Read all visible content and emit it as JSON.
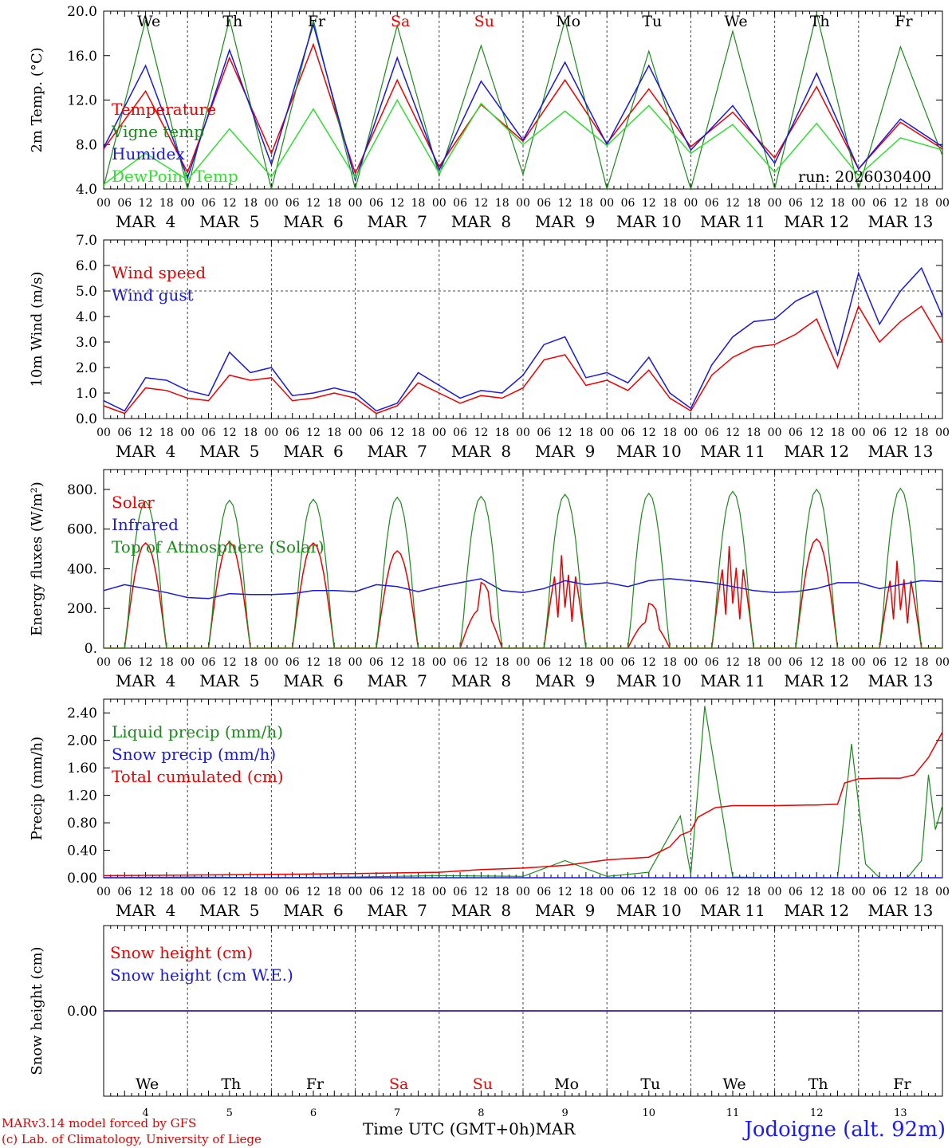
{
  "footer": {
    "model_line": "MARv3.14 model forced by GFS",
    "copyright_line": "(c) Lab. of Climatology, University of Liege",
    "xaxis_title": "Time UTC (GMT+0h)",
    "month": "MAR",
    "site": "Jodoigne (alt. 92m)"
  },
  "colors": {
    "red": "#ee0000",
    "green": "#1a8a1a",
    "blue": "#1818e0",
    "lightgreen": "#33dd33",
    "weekend": "#ee0000"
  },
  "days": {
    "weekday_names": [
      "We",
      "Th",
      "Fr",
      "Sa",
      "Su",
      "Mo",
      "Tu",
      "We",
      "Th",
      "Fr"
    ],
    "weekend_flags": [
      false,
      false,
      false,
      true,
      true,
      false,
      false,
      false,
      false,
      false
    ],
    "day_numbers": [
      "4",
      "5",
      "6",
      "7",
      "8",
      "9",
      "10",
      "11",
      "12",
      "13"
    ],
    "month_labels": [
      "MAR  4",
      "MAR  5",
      "MAR  6",
      "MAR  7",
      "MAR  8",
      "MAR  9",
      "MAR 10",
      "MAR 11",
      "MAR 12",
      "MAR 13"
    ],
    "hour_ticks": [
      "00",
      "06",
      "12",
      "18"
    ],
    "final_hour_tick": "00"
  },
  "chart_data": [
    {
      "type": "line",
      "name": "temperature",
      "ylabel": "2m Temp. (°C)",
      "ylim": [
        4,
        20
      ],
      "yticks": [
        "4.0",
        "8.0",
        "12.0",
        "16.0",
        "20.0"
      ],
      "annotation": "run: 2026030400",
      "x_hours": [
        0,
        12,
        24,
        36,
        48,
        60,
        72,
        84,
        96,
        108,
        120,
        132,
        144,
        156,
        168,
        180,
        192,
        204,
        216,
        228,
        240
      ],
      "series": [
        {
          "name": "Temperature",
          "color": "red",
          "values": [
            7.6,
            12.8,
            5.5,
            15.8,
            7.2,
            17.0,
            5.4,
            13.8,
            6.0,
            11.6,
            8.3,
            13.8,
            8.1,
            13.0,
            7.8,
            10.9,
            6.8,
            13.2,
            5.8,
            10.0,
            7.6
          ]
        },
        {
          "name": "Vigne temp",
          "color": "green",
          "values": [
            4.2,
            19.2,
            4.0,
            19.3,
            3.8,
            19.2,
            3.9,
            18.7,
            5.2,
            16.9,
            5.3,
            19.2,
            4.0,
            16.4,
            3.5,
            18.2,
            3.4,
            19.8,
            3.6,
            16.8,
            7.0
          ]
        },
        {
          "name": "Humidex",
          "color": "blue",
          "values": [
            7.7,
            15.1,
            5.0,
            16.5,
            6.2,
            18.8,
            4.8,
            15.8,
            5.7,
            13.7,
            8.4,
            15.4,
            8.0,
            15.1,
            7.5,
            11.5,
            6.3,
            14.4,
            5.8,
            10.3,
            7.8
          ]
        },
        {
          "name": "DewPoint Temp",
          "color": "lightgreen",
          "values": [
            4.4,
            7.2,
            4.8,
            9.4,
            5.1,
            11.2,
            5.0,
            12.0,
            5.4,
            11.7,
            8.0,
            11.0,
            7.9,
            11.5,
            7.2,
            9.8,
            5.5,
            9.9,
            5.2,
            8.6,
            7.5
          ]
        }
      ]
    },
    {
      "type": "line",
      "name": "wind",
      "ylabel": "10m Wind (m/s)",
      "ylim": [
        0,
        7
      ],
      "yticks": [
        "0.0",
        "1.0",
        "2.0",
        "3.0",
        "4.0",
        "5.0",
        "6.0",
        "7.0"
      ],
      "ref_line": 5.0,
      "x_hours": [
        0,
        6,
        12,
        18,
        24,
        30,
        36,
        42,
        48,
        54,
        60,
        66,
        72,
        78,
        84,
        90,
        96,
        102,
        108,
        114,
        120,
        126,
        132,
        138,
        144,
        150,
        156,
        162,
        168,
        174,
        180,
        186,
        192,
        198,
        204,
        210,
        216,
        222,
        228,
        234,
        240
      ],
      "series": [
        {
          "name": "Wind speed",
          "color": "red",
          "values": [
            0.5,
            0.2,
            1.2,
            1.1,
            0.8,
            0.7,
            1.7,
            1.5,
            1.6,
            0.7,
            0.8,
            1.0,
            0.8,
            0.2,
            0.5,
            1.4,
            1.0,
            0.6,
            0.9,
            0.8,
            1.2,
            2.3,
            2.5,
            1.3,
            1.5,
            1.1,
            1.9,
            0.8,
            0.3,
            1.7,
            2.4,
            2.8,
            2.9,
            3.3,
            3.9,
            2.0,
            4.4,
            3.0,
            3.8,
            4.4,
            3.0
          ]
        },
        {
          "name": "Wind gust",
          "color": "blue",
          "values": [
            0.7,
            0.3,
            1.6,
            1.5,
            1.1,
            0.9,
            2.6,
            1.8,
            2.0,
            0.9,
            1.0,
            1.2,
            1.0,
            0.3,
            0.6,
            1.8,
            1.3,
            0.8,
            1.1,
            1.0,
            1.7,
            2.9,
            3.2,
            1.6,
            1.8,
            1.4,
            2.4,
            1.0,
            0.4,
            2.1,
            3.2,
            3.8,
            3.9,
            4.6,
            5.0,
            2.5,
            5.7,
            3.7,
            5.0,
            5.9,
            4.0
          ]
        }
      ]
    },
    {
      "type": "line",
      "name": "energy",
      "ylabel": "Energy fluxes (W/m²)",
      "ylim": [
        0,
        900
      ],
      "yticks": [
        "0.",
        "200.",
        "400.",
        "600.",
        "800."
      ],
      "series": [
        {
          "name": "Solar",
          "color": "red",
          "daily_peaks": [
            530,
            535,
            530,
            490,
            360,
            510,
            245,
            560,
            550,
            480
          ],
          "daily_shape": [
            "clear",
            "clear",
            "clear",
            "clear",
            "cloudy",
            "spiky",
            "cloudy",
            "spiky",
            "clear",
            "spiky"
          ]
        },
        {
          "name": "Infrared",
          "color": "blue",
          "x_hours": [
            0,
            6,
            12,
            18,
            24,
            30,
            36,
            42,
            48,
            54,
            60,
            66,
            72,
            78,
            84,
            90,
            96,
            102,
            108,
            114,
            120,
            126,
            132,
            138,
            144,
            150,
            156,
            162,
            168,
            174,
            180,
            186,
            192,
            198,
            204,
            210,
            216,
            222,
            228,
            234,
            240
          ],
          "values": [
            290,
            320,
            300,
            280,
            255,
            250,
            275,
            270,
            270,
            275,
            290,
            290,
            285,
            320,
            310,
            285,
            310,
            330,
            350,
            290,
            280,
            300,
            340,
            320,
            330,
            310,
            340,
            350,
            340,
            330,
            310,
            290,
            280,
            285,
            300,
            330,
            330,
            300,
            320,
            340,
            335
          ]
        },
        {
          "name": "Top of Atmosphere (Solar)",
          "color": "green",
          "daily_peaks": [
            740,
            745,
            750,
            760,
            765,
            775,
            780,
            790,
            800,
            805
          ]
        }
      ]
    },
    {
      "type": "line",
      "name": "precip",
      "ylabel": "Precip (mm/h)",
      "ylim": [
        0,
        2.6
      ],
      "yticks": [
        "0.00",
        "0.40",
        "0.80",
        "1.20",
        "1.60",
        "2.00",
        "2.40"
      ],
      "series": [
        {
          "name": "Liquid precip (mm/h)",
          "color": "green",
          "x_hours": [
            0,
            24,
            48,
            72,
            96,
            120,
            132,
            144,
            156,
            165,
            168,
            172,
            180,
            192,
            210,
            214,
            218,
            222,
            230,
            234,
            236,
            238,
            240
          ],
          "values": [
            0.0,
            0.01,
            0.0,
            0.01,
            0.03,
            0.02,
            0.25,
            0.02,
            0.08,
            0.9,
            0.05,
            2.5,
            0.01,
            0.0,
            0.0,
            1.95,
            0.2,
            0.0,
            0.0,
            0.25,
            1.5,
            0.7,
            1.05
          ]
        },
        {
          "name": "Snow precip (mm/h)",
          "color": "blue",
          "x_hours": [
            0,
            240
          ],
          "values": [
            0.0,
            0.0
          ]
        },
        {
          "name": "Total cumulated (cm)",
          "color": "red",
          "x_hours": [
            0,
            24,
            48,
            72,
            96,
            108,
            120,
            132,
            144,
            156,
            162,
            165,
            168,
            170,
            175,
            180,
            192,
            204,
            210,
            212,
            216,
            222,
            228,
            232,
            236,
            240
          ],
          "values": [
            0.03,
            0.04,
            0.05,
            0.06,
            0.08,
            0.12,
            0.14,
            0.18,
            0.26,
            0.3,
            0.45,
            0.62,
            0.68,
            0.88,
            1.02,
            1.05,
            1.05,
            1.06,
            1.07,
            1.38,
            1.44,
            1.45,
            1.45,
            1.5,
            1.75,
            2.12
          ]
        }
      ]
    },
    {
      "type": "line",
      "name": "snow",
      "ylabel": "Snow height (cm)",
      "ylim": [
        -1,
        1
      ],
      "yticks": [
        "0.00"
      ],
      "series": [
        {
          "name": "Snow height (cm)",
          "color": "red",
          "x_hours": [
            0,
            240
          ],
          "values": [
            0,
            0
          ]
        },
        {
          "name": "Snow height (cm W.E.)",
          "color": "blue",
          "x_hours": [
            0,
            240
          ],
          "values": [
            0,
            0
          ]
        }
      ]
    }
  ]
}
